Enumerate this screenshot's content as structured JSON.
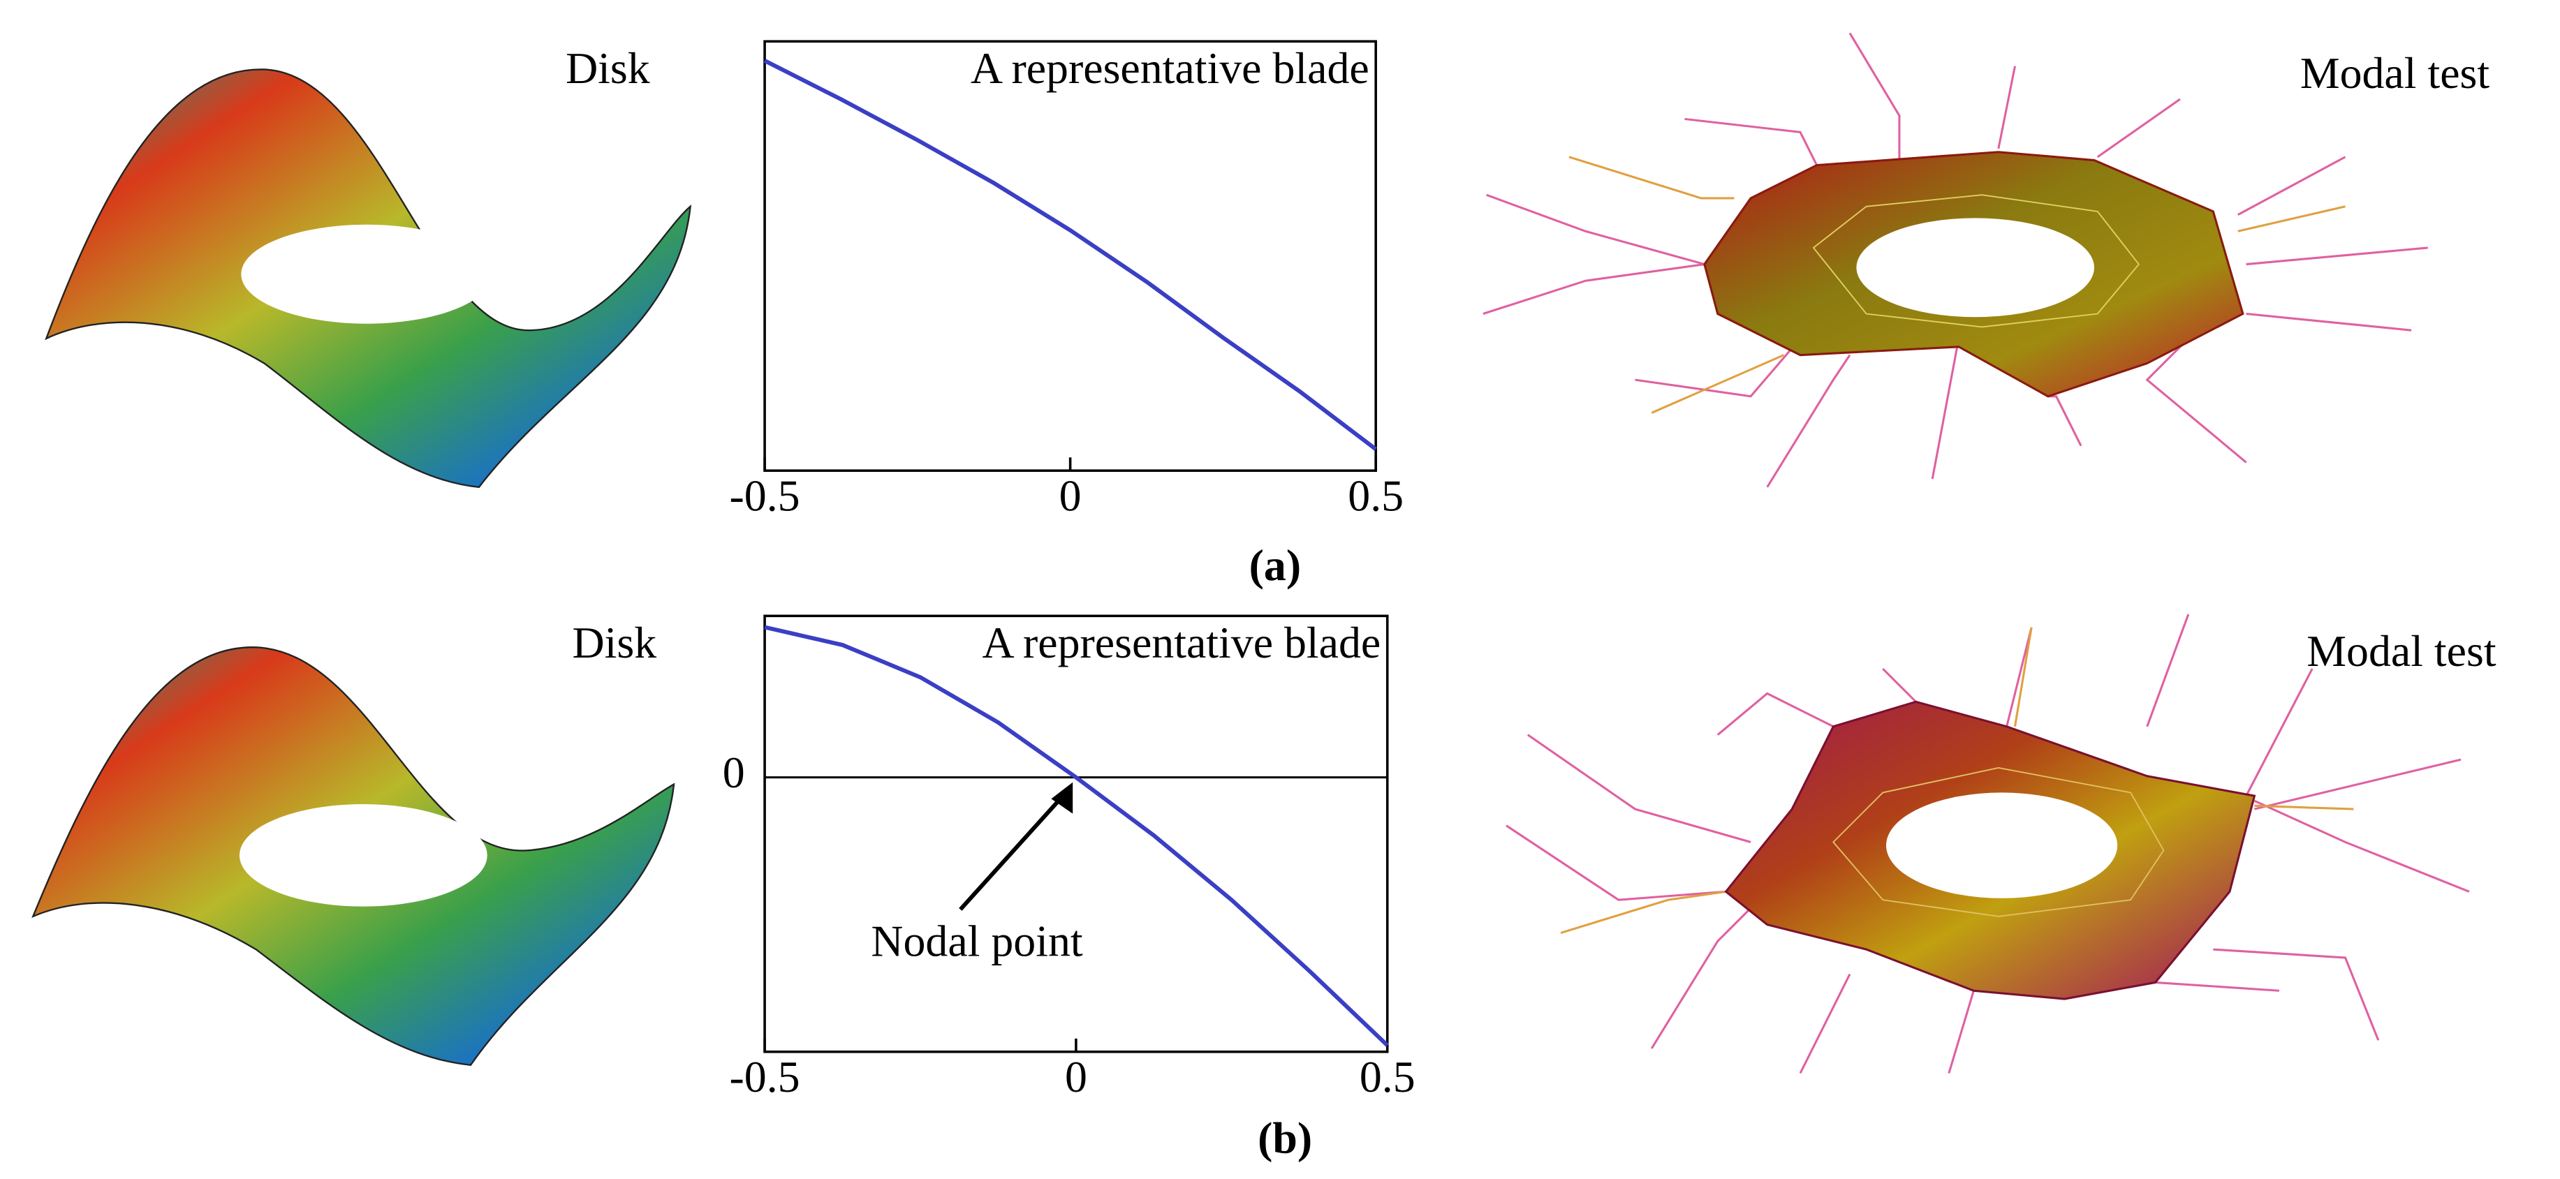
{
  "chart_data": [
    {
      "type": "line",
      "title": "A representative blade",
      "x": [
        -0.5,
        -0.375,
        -0.25,
        -0.125,
        0,
        0.125,
        0.25,
        0.375,
        0.5
      ],
      "values": [
        0.91,
        0.73,
        0.54,
        0.34,
        0.12,
        -0.12,
        -0.38,
        -0.63,
        -0.9
      ],
      "color": "#3a3fc4",
      "xlim": [
        -0.5,
        0.5
      ],
      "xticks": [
        -0.5,
        0,
        0.5
      ],
      "ylim": [
        -1,
        1
      ]
    },
    {
      "type": "line",
      "title": "A representative blade",
      "x": [
        -0.5,
        -0.375,
        -0.25,
        -0.125,
        0,
        0.125,
        0.25,
        0.375,
        0.5
      ],
      "values": [
        0.93,
        0.82,
        0.62,
        0.34,
        0,
        -0.36,
        -0.76,
        -1.2,
        -1.66
      ],
      "color": "#3a3fc4",
      "xlim": [
        -0.5,
        0.5
      ],
      "xticks": [
        -0.5,
        0,
        0.5
      ],
      "ylim": [
        -1.7,
        1
      ],
      "yticks": [
        0
      ],
      "annotation": "Nodal point"
    }
  ],
  "panels": [
    {
      "label": "(a)",
      "disk": "Disk",
      "modal": "Modal test"
    },
    {
      "label": "(b)",
      "disk": "Disk",
      "modal": "Modal test"
    }
  ]
}
